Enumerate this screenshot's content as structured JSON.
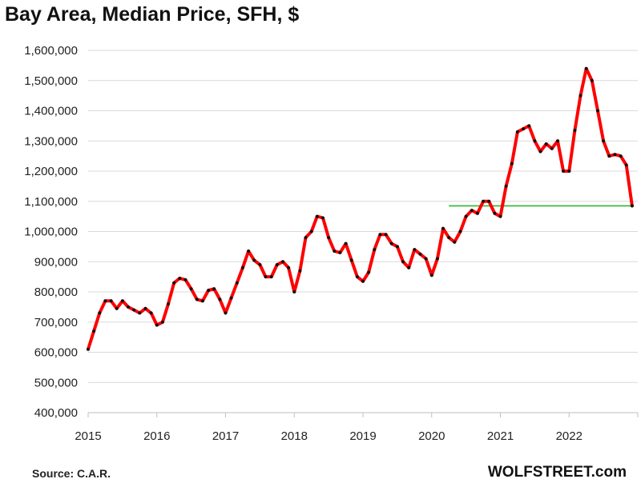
{
  "chart_data": {
    "type": "line",
    "title": "Bay Area, Median Price, SFH, $",
    "xlabel": "",
    "ylabel": "",
    "ylim": [
      400000,
      1600000
    ],
    "yticks": [
      400000,
      500000,
      600000,
      700000,
      800000,
      900000,
      1000000,
      1100000,
      1200000,
      1300000,
      1400000,
      1500000,
      1600000
    ],
    "ytick_labels": [
      "400,000",
      "500,000",
      "600,000",
      "700,000",
      "800,000",
      "900,000",
      "1,000,000",
      "1,100,000",
      "1,200,000",
      "1,300,000",
      "1,400,000",
      "1,500,000",
      "1,600,000"
    ],
    "xlim": [
      2015,
      2023
    ],
    "xtick_labels": [
      "2015",
      "2016",
      "2017",
      "2018",
      "2019",
      "2020",
      "2021",
      "2022"
    ],
    "series": [
      {
        "name": "Median Price",
        "color": "#ff0000",
        "marker_color": "#111111",
        "start": 2015,
        "step_months": 1,
        "values": [
          610000,
          670000,
          730000,
          770000,
          770000,
          745000,
          770000,
          750000,
          740000,
          730000,
          745000,
          730000,
          690000,
          700000,
          760000,
          830000,
          845000,
          840000,
          810000,
          775000,
          770000,
          805000,
          810000,
          775000,
          730000,
          780000,
          830000,
          880000,
          935000,
          905000,
          890000,
          850000,
          850000,
          890000,
          900000,
          880000,
          800000,
          870000,
          980000,
          1000000,
          1050000,
          1045000,
          980000,
          935000,
          930000,
          960000,
          905000,
          850000,
          835000,
          865000,
          940000,
          990000,
          990000,
          960000,
          950000,
          900000,
          880000,
          940000,
          925000,
          910000,
          855000,
          910000,
          1010000,
          980000,
          965000,
          1000000,
          1050000,
          1070000,
          1060000,
          1100000,
          1100000,
          1060000,
          1050000,
          1150000,
          1225000,
          1330000,
          1340000,
          1350000,
          1300000,
          1265000,
          1290000,
          1275000,
          1300000,
          1200000,
          1200000,
          1335000,
          1450000,
          1540000,
          1500000,
          1400000,
          1300000,
          1250000,
          1255000,
          1250000,
          1220000,
          1085000
        ]
      }
    ],
    "reference_line": {
      "value": 1085000,
      "x_start": 2020.25,
      "x_end": 2022.92,
      "color": "#2eb82e"
    }
  },
  "footer": {
    "source": "Source: C.A.R.",
    "brand": "WOLFSTREET.com"
  }
}
